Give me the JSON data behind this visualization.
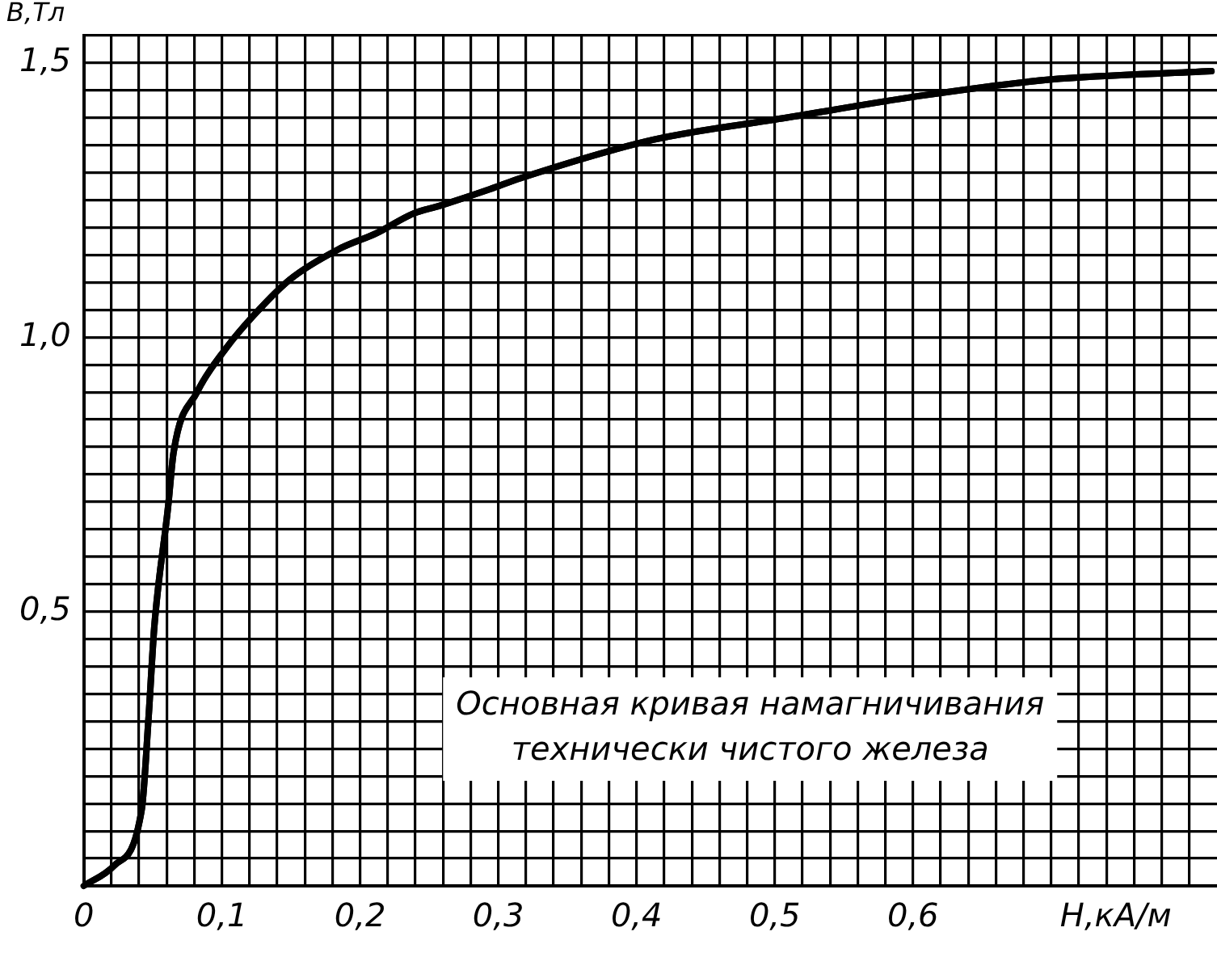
{
  "chart_data": {
    "type": "line",
    "ylabel": "В,Тл",
    "xlabel": "H,кА/м",
    "annotations": [
      "Основная кривая намагничивания",
      "технически чистого железа"
    ],
    "x": [
      0,
      0.022,
      0.042,
      0.047,
      0.051,
      0.061,
      0.065,
      0.082,
      0.103,
      0.123,
      0.149,
      0.184,
      0.212,
      0.238,
      0.258,
      0.294,
      0.316,
      0.412,
      0.508,
      0.605,
      0.7,
      0.816
    ],
    "series": [
      {
        "color": "#000000",
        "values": [
          0,
          0.037,
          0.14,
          0.31,
          0.47,
          0.69,
          0.79,
          0.9,
          0.98,
          1.04,
          1.105,
          1.16,
          1.19,
          1.225,
          1.24,
          1.27,
          1.29,
          1.36,
          1.4,
          1.44,
          1.47,
          1.485
        ]
      }
    ],
    "xlim": [
      0,
      0.82
    ],
    "ylim": [
      0,
      1.55
    ],
    "xticks": [
      {
        "value": 0,
        "label": "0"
      },
      {
        "value": 0.02,
        "label": null
      },
      {
        "value": 0.04,
        "label": null
      },
      {
        "value": 0.06,
        "label": null
      },
      {
        "value": 0.08,
        "label": null
      },
      {
        "value": 0.1,
        "label": "0,1"
      },
      {
        "value": 0.12,
        "label": null
      },
      {
        "value": 0.14,
        "label": null
      },
      {
        "value": 0.16,
        "label": null
      },
      {
        "value": 0.18,
        "label": null
      },
      {
        "value": 0.2,
        "label": "0,2"
      },
      {
        "value": 0.22,
        "label": null
      },
      {
        "value": 0.24,
        "label": null
      },
      {
        "value": 0.26,
        "label": null
      },
      {
        "value": 0.28,
        "label": null
      },
      {
        "value": 0.3,
        "label": "0,3"
      },
      {
        "value": 0.32,
        "label": null
      },
      {
        "value": 0.34,
        "label": null
      },
      {
        "value": 0.36,
        "label": null
      },
      {
        "value": 0.38,
        "label": null
      },
      {
        "value": 0.4,
        "label": "0,4"
      },
      {
        "value": 0.42,
        "label": null
      },
      {
        "value": 0.44,
        "label": null
      },
      {
        "value": 0.46,
        "label": null
      },
      {
        "value": 0.48,
        "label": null
      },
      {
        "value": 0.5,
        "label": "0,5"
      },
      {
        "value": 0.52,
        "label": null
      },
      {
        "value": 0.54,
        "label": null
      },
      {
        "value": 0.56,
        "label": null
      },
      {
        "value": 0.58,
        "label": null
      },
      {
        "value": 0.6,
        "label": "0,6"
      },
      {
        "value": 0.62,
        "label": null
      },
      {
        "value": 0.64,
        "label": null
      },
      {
        "value": 0.66,
        "label": null
      },
      {
        "value": 0.68,
        "label": null
      },
      {
        "value": 0.7,
        "label": null
      },
      {
        "value": 0.72,
        "label": null
      },
      {
        "value": 0.74,
        "label": null
      },
      {
        "value": 0.76,
        "label": null
      },
      {
        "value": 0.78,
        "label": null
      },
      {
        "value": 0.8,
        "label": null
      }
    ],
    "yticks": [
      {
        "value": 0,
        "label": null
      },
      {
        "value": 0.05,
        "label": null
      },
      {
        "value": 0.1,
        "label": null
      },
      {
        "value": 0.15,
        "label": null
      },
      {
        "value": 0.2,
        "label": null
      },
      {
        "value": 0.25,
        "label": null
      },
      {
        "value": 0.3,
        "label": null
      },
      {
        "value": 0.35,
        "label": null
      },
      {
        "value": 0.4,
        "label": null
      },
      {
        "value": 0.45,
        "label": null
      },
      {
        "value": 0.5,
        "label": "0,5"
      },
      {
        "value": 0.55,
        "label": null
      },
      {
        "value": 0.6,
        "label": null
      },
      {
        "value": 0.65,
        "label": null
      },
      {
        "value": 0.7,
        "label": null
      },
      {
        "value": 0.75,
        "label": null
      },
      {
        "value": 0.8,
        "label": null
      },
      {
        "value": 0.85,
        "label": null
      },
      {
        "value": 0.9,
        "label": null
      },
      {
        "value": 0.95,
        "label": null
      },
      {
        "value": 1.0,
        "label": "1,0"
      },
      {
        "value": 1.05,
        "label": null
      },
      {
        "value": 1.1,
        "label": null
      },
      {
        "value": 1.15,
        "label": null
      },
      {
        "value": 1.2,
        "label": null
      },
      {
        "value": 1.25,
        "label": null
      },
      {
        "value": 1.3,
        "label": null
      },
      {
        "value": 1.35,
        "label": null
      },
      {
        "value": 1.4,
        "label": null
      },
      {
        "value": 1.45,
        "label": null
      },
      {
        "value": 1.5,
        "label": "1,5"
      },
      {
        "value": 1.55,
        "label": null
      }
    ],
    "grid": true,
    "legend": false,
    "marker": "none",
    "line_style": "solid"
  }
}
